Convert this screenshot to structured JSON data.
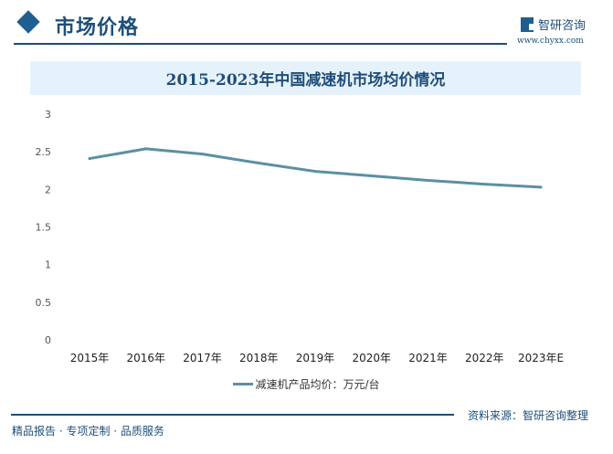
{
  "header": {
    "title": "市场价格",
    "logo_text": "智研咨询",
    "logo_url": "www.chyxx.com"
  },
  "chart_data": {
    "type": "line",
    "title": "2015-2023年中国减速机市场均价情况",
    "categories": [
      "2015年",
      "2016年",
      "2017年",
      "2018年",
      "2019年",
      "2020年",
      "2021年",
      "2022年",
      "2023年E"
    ],
    "series": [
      {
        "name": "减速机产品均价：万元/台",
        "values": [
          2.41,
          2.54,
          2.47,
          2.35,
          2.24,
          2.18,
          2.12,
          2.07,
          2.03
        ],
        "color": "#5b8fa3"
      }
    ],
    "ylim": [
      0,
      3
    ],
    "yticks": [
      "0",
      "0.5",
      "1",
      "1.5",
      "2",
      "2.5",
      "3"
    ],
    "grid": false,
    "legend": "bottom"
  },
  "footer": {
    "source": "资料来源：智研咨询整理",
    "slogan": "精品报告 · 专项定制 · 品质服务"
  }
}
